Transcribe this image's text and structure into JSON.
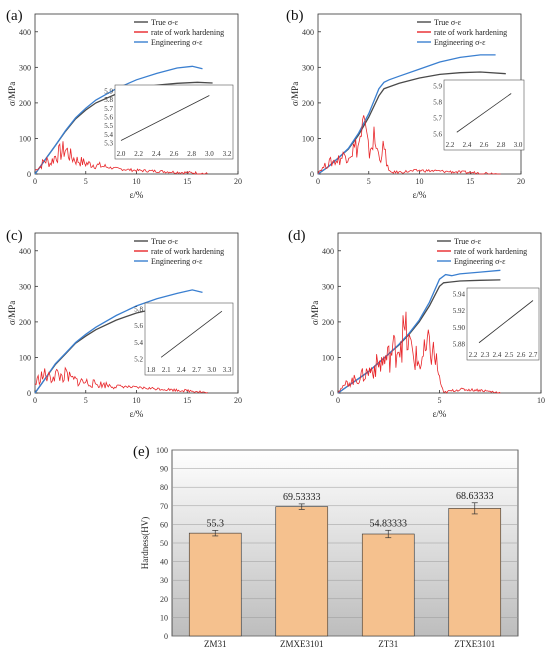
{
  "figure": {
    "panels": [
      {
        "label": "(a)",
        "xlabel": "ε/%",
        "ylabel": "σ/MPa",
        "xticks": [
          "0",
          "5",
          "10",
          "15",
          "20"
        ],
        "yticks": [
          "0",
          "100",
          "200",
          "300",
          "400"
        ],
        "legend": [
          "True σ-ε",
          "rate of work hardening",
          "Engineering σ-ε"
        ],
        "inset_xticks": [
          "2.0",
          "2.2",
          "2.4",
          "2.6",
          "2.8",
          "3.0",
          "3.2"
        ],
        "inset_yticks": [
          "5.3",
          "5.4",
          "5.5",
          "5.6",
          "5.7",
          "5.8",
          "5.9"
        ]
      },
      {
        "label": "(b)",
        "xlabel": "ε/%",
        "ylabel": "σ/MPa",
        "xticks": [
          "0",
          "5",
          "10",
          "15",
          "20"
        ],
        "yticks": [
          "0",
          "100",
          "200",
          "300",
          "400"
        ],
        "legend": [
          "True σ-ε",
          "rate of work hardening",
          "Engineering σ-ε"
        ],
        "inset_xticks": [
          "2.2",
          "2.4",
          "2.6",
          "2.8",
          "3.0"
        ],
        "inset_yticks": [
          "5.6",
          "5.7",
          "5.8",
          "5.9"
        ]
      },
      {
        "label": "(c)",
        "xlabel": "ε/%",
        "ylabel": "σ/MPa",
        "xticks": [
          "0",
          "5",
          "10",
          "15",
          "20"
        ],
        "yticks": [
          "0",
          "100",
          "200",
          "300",
          "400"
        ],
        "legend": [
          "True σ-ε",
          "rate of work hardening",
          "Engineering σ-ε"
        ],
        "inset_xticks": [
          "1.8",
          "2.1",
          "2.4",
          "2.7",
          "3.0",
          "3.3"
        ],
        "inset_yticks": [
          "5.2",
          "5.4",
          "5.6",
          "5.8"
        ]
      },
      {
        "label": "(d)",
        "xlabel": "ε/%",
        "ylabel": "σ/MPa",
        "xticks": [
          "0",
          "5",
          "10"
        ],
        "yticks": [
          "0",
          "100",
          "200",
          "300",
          "400"
        ],
        "legend": [
          "True σ-ε",
          "rate of work hardening",
          "Engineering σ-ε"
        ],
        "inset_xticks": [
          "2.2",
          "2.3",
          "2.4",
          "2.5",
          "2.6",
          "2.7"
        ],
        "inset_yticks": [
          "5.88",
          "5.90",
          "5.92",
          "5.94"
        ]
      }
    ],
    "bar_panel": {
      "label": "(e)",
      "ylabel": "Hardness(HV)"
    }
  },
  "colors": {
    "true_curve": "#4a4a4a",
    "hardening": "#e8262a",
    "engineering": "#3a7fd0",
    "bar_fill": "#f5c18e",
    "bar_stroke": "#333333"
  },
  "chart_data": [
    {
      "type": "line",
      "title": "",
      "xlabel": "ε/%",
      "ylabel": "σ/MPa",
      "xlim": [
        0,
        20
      ],
      "ylim": [
        0,
        450
      ],
      "legend_position": "top-right",
      "series": [
        {
          "name": "True σ-ε",
          "x": [
            0,
            0.5,
            1,
            2,
            3,
            4,
            5,
            6,
            8,
            10,
            12,
            14,
            16,
            17.5
          ],
          "y": [
            0,
            20,
            40,
            80,
            120,
            155,
            180,
            200,
            225,
            240,
            250,
            255,
            258,
            256
          ]
        },
        {
          "name": "Engineering σ-ε",
          "x": [
            0,
            0.5,
            1,
            2,
            3,
            4,
            5,
            6,
            8,
            10,
            12,
            14,
            15.5,
            16.5
          ],
          "y": [
            0,
            20,
            40,
            80,
            122,
            158,
            185,
            208,
            240,
            265,
            283,
            298,
            303,
            296
          ]
        },
        {
          "name": "rate of work hardening",
          "x": [
            0,
            0.5,
            1,
            1.5,
            2,
            2.5,
            3,
            3.5,
            4,
            5,
            6,
            8,
            10,
            12,
            14,
            16,
            17
          ],
          "y": [
            10,
            20,
            40,
            30,
            50,
            60,
            70,
            50,
            40,
            30,
            25,
            15,
            10,
            8,
            5,
            3,
            0
          ]
        }
      ],
      "inset": {
        "xlim": [
          2.0,
          3.2
        ],
        "ylim": [
          5.3,
          5.9
        ],
        "x": [
          2.0,
          3.0
        ],
        "y": [
          5.35,
          5.85
        ]
      }
    },
    {
      "type": "line",
      "title": "",
      "xlabel": "ε/%",
      "ylabel": "σ/MPa",
      "xlim": [
        0,
        20
      ],
      "ylim": [
        0,
        450
      ],
      "legend_position": "top-right",
      "series": [
        {
          "name": "True σ-ε",
          "x": [
            0,
            1,
            2,
            3,
            4,
            5,
            6,
            6.5,
            7,
            8,
            10,
            12,
            14,
            16,
            18.5
          ],
          "y": [
            0,
            20,
            45,
            70,
            110,
            160,
            220,
            240,
            245,
            255,
            270,
            280,
            285,
            287,
            282
          ]
        },
        {
          "name": "Engineering σ-ε",
          "x": [
            0,
            1,
            2,
            3,
            4,
            5,
            6,
            6.5,
            7,
            8,
            10,
            12,
            14,
            16,
            17.5
          ],
          "y": [
            0,
            20,
            45,
            72,
            115,
            170,
            240,
            258,
            265,
            275,
            295,
            315,
            328,
            335,
            335
          ]
        },
        {
          "name": "rate of work hardening",
          "x": [
            0,
            1,
            2,
            3,
            4,
            4.5,
            5,
            5.5,
            6,
            6.5,
            7,
            8,
            10,
            12,
            14,
            16,
            18
          ],
          "y": [
            5,
            30,
            40,
            60,
            80,
            140,
            60,
            100,
            50,
            70,
            5,
            5,
            10,
            8,
            5,
            3,
            0
          ]
        }
      ],
      "inset": {
        "xlim": [
          2.1,
          3.1
        ],
        "ylim": [
          5.55,
          5.95
        ],
        "x": [
          2.2,
          3.0
        ],
        "y": [
          5.58,
          5.89
        ]
      }
    },
    {
      "type": "line",
      "title": "",
      "xlabel": "ε/%",
      "ylabel": "σ/MPa",
      "xlim": [
        0,
        20
      ],
      "ylim": [
        0,
        450
      ],
      "legend_position": "top-right",
      "series": [
        {
          "name": "True σ-ε",
          "x": [
            0,
            0.5,
            1,
            2,
            3,
            4,
            5,
            6,
            8,
            10,
            12,
            14,
            16,
            17.5
          ],
          "y": [
            0,
            20,
            40,
            80,
            110,
            140,
            160,
            178,
            205,
            225,
            238,
            245,
            250,
            248
          ]
        },
        {
          "name": "Engineering σ-ε",
          "x": [
            0,
            0.5,
            1,
            2,
            3,
            4,
            5,
            6,
            8,
            10,
            12,
            14,
            15.5,
            16.5
          ],
          "y": [
            0,
            20,
            40,
            82,
            112,
            142,
            165,
            185,
            218,
            245,
            265,
            280,
            290,
            283
          ]
        },
        {
          "name": "rate of work hardening",
          "x": [
            0,
            0.5,
            1,
            1.5,
            2,
            2.5,
            3,
            3.5,
            4,
            5,
            6,
            8,
            10,
            12,
            14,
            16,
            17
          ],
          "y": [
            25,
            45,
            50,
            40,
            55,
            45,
            50,
            40,
            35,
            30,
            25,
            20,
            15,
            12,
            8,
            5,
            0
          ]
        }
      ],
      "inset": {
        "xlim": [
          1.8,
          3.3
        ],
        "ylim": [
          5.15,
          5.85
        ],
        "x": [
          2.0,
          3.2
        ],
        "y": [
          5.2,
          5.82
        ]
      }
    },
    {
      "type": "line",
      "title": "",
      "xlabel": "ε/%",
      "ylabel": "σ/MPa",
      "xlim": [
        0,
        10
      ],
      "ylim": [
        0,
        450
      ],
      "legend_position": "top-right",
      "series": [
        {
          "name": "True σ-ε",
          "x": [
            0,
            0.5,
            1,
            1.5,
            2,
            2.5,
            3,
            3.5,
            4,
            4.5,
            5,
            5.2,
            5.5,
            6,
            7,
            8
          ],
          "y": [
            0,
            20,
            40,
            60,
            85,
            110,
            135,
            165,
            200,
            245,
            300,
            310,
            312,
            315,
            317,
            318
          ]
        },
        {
          "name": "Engineering σ-ε",
          "x": [
            0,
            0.5,
            1,
            1.5,
            2,
            2.5,
            3,
            3.5,
            4,
            4.5,
            5,
            5.3,
            5.6,
            6,
            7,
            8
          ],
          "y": [
            0,
            20,
            40,
            60,
            85,
            110,
            137,
            168,
            205,
            255,
            320,
            333,
            330,
            335,
            340,
            345
          ]
        },
        {
          "name": "rate of work hardening",
          "x": [
            0,
            0.5,
            1,
            1.5,
            2,
            2.5,
            3,
            3.3,
            3.6,
            4,
            4.5,
            4.8,
            5,
            5.2,
            5.5,
            6,
            7,
            8
          ],
          "y": [
            5,
            30,
            40,
            60,
            80,
            100,
            140,
            170,
            120,
            80,
            130,
            100,
            40,
            0,
            5,
            10,
            8,
            0
          ]
        }
      ],
      "inset": {
        "xlim": [
          2.2,
          2.7
        ],
        "ylim": [
          5.87,
          5.95
        ],
        "x": [
          2.25,
          2.7
        ],
        "y": [
          5.875,
          5.94
        ]
      }
    },
    {
      "type": "bar",
      "title": "",
      "xlabel": "",
      "ylabel": "Hardness(HV)",
      "ylim": [
        0,
        100
      ],
      "yticks": [
        "0",
        "10",
        "20",
        "30",
        "40",
        "50",
        "60",
        "70",
        "80",
        "90",
        "100"
      ],
      "categories": [
        "ZM31",
        "ZMXE3101",
        "ZT31",
        "ZTXE3101"
      ],
      "values": [
        55.3,
        69.53333,
        54.83333,
        68.63333
      ],
      "value_labels": [
        "55.3",
        "69.53333",
        "54.83333",
        "68.63333"
      ],
      "errors": [
        1.5,
        1.5,
        2.0,
        3.0
      ],
      "grid": true
    }
  ]
}
